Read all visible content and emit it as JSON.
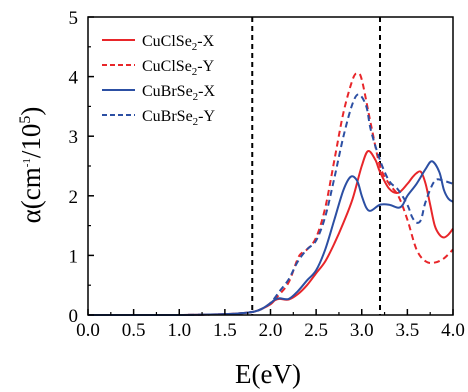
{
  "chart_data": {
    "type": "line",
    "xlabel": "E(eV)",
    "ylabel_parts": {
      "prefix": "α(cm",
      "exp1": "-1",
      "mid": "/10",
      "exp2": "5",
      "suffix": ")"
    },
    "xlim": [
      0.0,
      4.0
    ],
    "ylim": [
      0,
      5
    ],
    "xticks": [
      "0.0",
      "0.5",
      "1.0",
      "1.5",
      "2.0",
      "2.5",
      "3.0",
      "3.5",
      "4.0"
    ],
    "yticks": [
      "0",
      "1",
      "2",
      "3",
      "4",
      "5"
    ],
    "vlines": [
      1.8,
      3.2
    ],
    "legend_position": "top-left",
    "series": [
      {
        "name": "CuClSe2-X",
        "legend": {
          "base": "CuClSe",
          "sub": "2",
          "tail": "-X"
        },
        "color": "#e8262a",
        "dash": "solid",
        "points": [
          [
            0.0,
            0.0
          ],
          [
            0.5,
            0.0
          ],
          [
            1.0,
            0.0
          ],
          [
            1.4,
            0.01
          ],
          [
            1.6,
            0.02
          ],
          [
            1.8,
            0.05
          ],
          [
            1.9,
            0.1
          ],
          [
            2.0,
            0.18
          ],
          [
            2.05,
            0.25
          ],
          [
            2.1,
            0.27
          ],
          [
            2.2,
            0.26
          ],
          [
            2.3,
            0.35
          ],
          [
            2.4,
            0.5
          ],
          [
            2.5,
            0.7
          ],
          [
            2.6,
            0.9
          ],
          [
            2.7,
            1.2
          ],
          [
            2.8,
            1.55
          ],
          [
            2.9,
            1.95
          ],
          [
            3.0,
            2.5
          ],
          [
            3.07,
            2.75
          ],
          [
            3.15,
            2.6
          ],
          [
            3.2,
            2.4
          ],
          [
            3.3,
            2.12
          ],
          [
            3.4,
            2.05
          ],
          [
            3.5,
            2.2
          ],
          [
            3.55,
            2.3
          ],
          [
            3.6,
            2.38
          ],
          [
            3.65,
            2.4
          ],
          [
            3.7,
            2.2
          ],
          [
            3.75,
            1.85
          ],
          [
            3.8,
            1.5
          ],
          [
            3.85,
            1.35
          ],
          [
            3.9,
            1.3
          ],
          [
            3.95,
            1.35
          ],
          [
            4.0,
            1.45
          ]
        ]
      },
      {
        "name": "CuClSe2-Y",
        "legend": {
          "base": "CuClSe",
          "sub": "2",
          "tail": "-Y"
        },
        "color": "#e8262a",
        "dash": "dashed",
        "points": [
          [
            0.0,
            0.0
          ],
          [
            0.5,
            0.0
          ],
          [
            1.0,
            0.0
          ],
          [
            1.4,
            0.01
          ],
          [
            1.6,
            0.02
          ],
          [
            1.8,
            0.05
          ],
          [
            1.9,
            0.1
          ],
          [
            2.0,
            0.2
          ],
          [
            2.1,
            0.35
          ],
          [
            2.2,
            0.55
          ],
          [
            2.3,
            0.95
          ],
          [
            2.35,
            1.05
          ],
          [
            2.4,
            1.1
          ],
          [
            2.5,
            1.3
          ],
          [
            2.6,
            1.8
          ],
          [
            2.7,
            2.6
          ],
          [
            2.8,
            3.4
          ],
          [
            2.9,
            3.95
          ],
          [
            2.95,
            4.05
          ],
          [
            3.0,
            3.95
          ],
          [
            3.1,
            3.2
          ],
          [
            3.2,
            2.5
          ],
          [
            3.3,
            2.2
          ],
          [
            3.4,
            2.0
          ],
          [
            3.5,
            1.6
          ],
          [
            3.6,
            1.1
          ],
          [
            3.7,
            0.9
          ],
          [
            3.8,
            0.88
          ],
          [
            3.9,
            0.95
          ],
          [
            4.0,
            1.1
          ]
        ]
      },
      {
        "name": "CuBrSe2-X",
        "legend": {
          "base": "CuBrSe",
          "sub": "2",
          "tail": "-X"
        },
        "color": "#2c4fa3",
        "dash": "solid",
        "points": [
          [
            0.0,
            0.0
          ],
          [
            0.5,
            0.0
          ],
          [
            1.0,
            0.0
          ],
          [
            1.4,
            0.01
          ],
          [
            1.6,
            0.02
          ],
          [
            1.8,
            0.05
          ],
          [
            1.9,
            0.1
          ],
          [
            2.0,
            0.2
          ],
          [
            2.05,
            0.26
          ],
          [
            2.1,
            0.28
          ],
          [
            2.2,
            0.27
          ],
          [
            2.3,
            0.4
          ],
          [
            2.4,
            0.58
          ],
          [
            2.5,
            0.75
          ],
          [
            2.6,
            1.1
          ],
          [
            2.7,
            1.6
          ],
          [
            2.8,
            2.1
          ],
          [
            2.88,
            2.32
          ],
          [
            2.95,
            2.25
          ],
          [
            3.0,
            2.0
          ],
          [
            3.05,
            1.8
          ],
          [
            3.1,
            1.75
          ],
          [
            3.2,
            1.85
          ],
          [
            3.3,
            1.85
          ],
          [
            3.4,
            1.8
          ],
          [
            3.45,
            1.85
          ],
          [
            3.5,
            2.0
          ],
          [
            3.6,
            2.2
          ],
          [
            3.7,
            2.45
          ],
          [
            3.77,
            2.58
          ],
          [
            3.85,
            2.4
          ],
          [
            3.9,
            2.1
          ],
          [
            3.95,
            1.95
          ],
          [
            4.0,
            1.9
          ]
        ]
      },
      {
        "name": "CuBrSe2-Y",
        "legend": {
          "base": "CuBrSe",
          "sub": "2",
          "tail": "-Y"
        },
        "color": "#2c4fa3",
        "dash": "dashed",
        "points": [
          [
            0.0,
            0.0
          ],
          [
            0.5,
            0.0
          ],
          [
            1.0,
            0.0
          ],
          [
            1.4,
            0.01
          ],
          [
            1.6,
            0.02
          ],
          [
            1.8,
            0.05
          ],
          [
            1.9,
            0.1
          ],
          [
            2.0,
            0.2
          ],
          [
            2.1,
            0.4
          ],
          [
            2.2,
            0.6
          ],
          [
            2.3,
            0.9
          ],
          [
            2.4,
            1.1
          ],
          [
            2.5,
            1.25
          ],
          [
            2.6,
            1.65
          ],
          [
            2.7,
            2.3
          ],
          [
            2.8,
            3.0
          ],
          [
            2.9,
            3.55
          ],
          [
            2.97,
            3.7
          ],
          [
            3.05,
            3.5
          ],
          [
            3.1,
            3.1
          ],
          [
            3.2,
            2.6
          ],
          [
            3.3,
            2.25
          ],
          [
            3.4,
            2.1
          ],
          [
            3.5,
            1.85
          ],
          [
            3.55,
            1.65
          ],
          [
            3.6,
            1.55
          ],
          [
            3.65,
            1.6
          ],
          [
            3.7,
            1.9
          ],
          [
            3.8,
            2.25
          ],
          [
            3.9,
            2.25
          ],
          [
            4.0,
            2.2
          ]
        ]
      }
    ]
  }
}
